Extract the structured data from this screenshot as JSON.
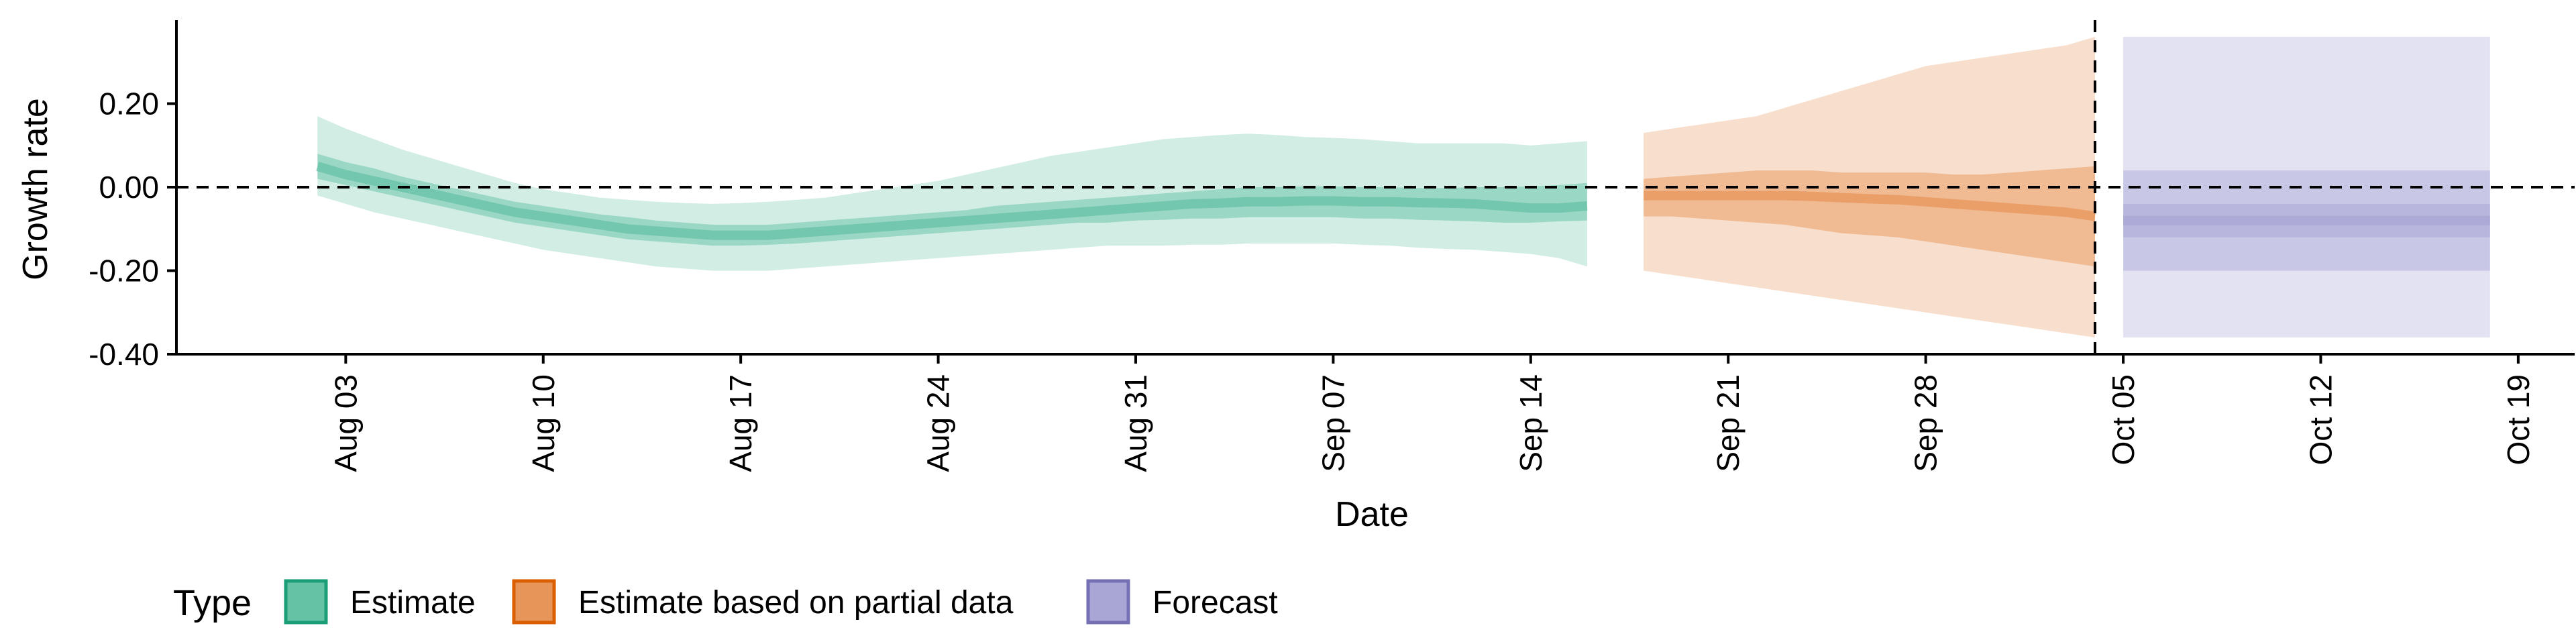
{
  "chart_data": {
    "type": "area",
    "xlabel": "Date",
    "ylabel": "Growth rate",
    "x_range": [
      "2020-07-28",
      "2020-10-21"
    ],
    "ylim": [
      -0.4,
      0.4
    ],
    "y_ticks": [
      -0.4,
      -0.2,
      0.0,
      0.2
    ],
    "y_tick_labels": [
      "-0.40",
      "-0.20",
      "0.00",
      "0.20"
    ],
    "x_ticks": [
      "2020-08-03",
      "2020-08-10",
      "2020-08-17",
      "2020-08-24",
      "2020-08-31",
      "2020-09-07",
      "2020-09-14",
      "2020-09-21",
      "2020-09-28",
      "2020-10-05",
      "2020-10-12",
      "2020-10-19"
    ],
    "x_tick_labels": [
      "Aug 03",
      "Aug 10",
      "Aug 17",
      "Aug 24",
      "Aug 31",
      "Sep 07",
      "Sep 14",
      "Sep 21",
      "Sep 28",
      "Oct 05",
      "Oct 12",
      "Oct 19"
    ],
    "reference_lines": {
      "horizontal_y": 0.0,
      "vertical_x": "2020-10-04"
    },
    "grid": false,
    "legend": {
      "title": "Type",
      "position": "bottom",
      "entries": [
        "Estimate",
        "Estimate based on partial data",
        "Forecast"
      ]
    },
    "colors": {
      "estimate_fill": "#66c2a5",
      "estimate_border": "#1b9e77",
      "partial_fill": "#e8955a",
      "partial_border": "#d95f02",
      "forecast_fill": "#a9a6d6",
      "forecast_border": "#7570b3"
    },
    "series": [
      {
        "name": "Estimate",
        "x": [
          "2020-08-02",
          "2020-08-03",
          "2020-08-04",
          "2020-08-05",
          "2020-08-06",
          "2020-08-07",
          "2020-08-08",
          "2020-08-09",
          "2020-08-10",
          "2020-08-11",
          "2020-08-12",
          "2020-08-13",
          "2020-08-14",
          "2020-08-15",
          "2020-08-16",
          "2020-08-17",
          "2020-08-18",
          "2020-08-19",
          "2020-08-20",
          "2020-08-21",
          "2020-08-22",
          "2020-08-23",
          "2020-08-24",
          "2020-08-25",
          "2020-08-26",
          "2020-08-27",
          "2020-08-28",
          "2020-08-29",
          "2020-08-30",
          "2020-08-31",
          "2020-09-01",
          "2020-09-02",
          "2020-09-03",
          "2020-09-04",
          "2020-09-05",
          "2020-09-06",
          "2020-09-07",
          "2020-09-08",
          "2020-09-09",
          "2020-09-10",
          "2020-09-11",
          "2020-09-12",
          "2020-09-13",
          "2020-09-14",
          "2020-09-15",
          "2020-09-16"
        ],
        "median": [
          0.05,
          0.03,
          0.015,
          0.0,
          -0.015,
          -0.03,
          -0.045,
          -0.06,
          -0.07,
          -0.08,
          -0.09,
          -0.1,
          -0.105,
          -0.11,
          -0.115,
          -0.115,
          -0.115,
          -0.11,
          -0.105,
          -0.1,
          -0.095,
          -0.09,
          -0.085,
          -0.08,
          -0.075,
          -0.07,
          -0.065,
          -0.06,
          -0.055,
          -0.05,
          -0.045,
          -0.04,
          -0.038,
          -0.035,
          -0.035,
          -0.033,
          -0.033,
          -0.035,
          -0.035,
          -0.037,
          -0.038,
          -0.04,
          -0.045,
          -0.05,
          -0.05,
          -0.045
        ],
        "lower_50": [
          0.02,
          0.005,
          -0.01,
          -0.025,
          -0.04,
          -0.055,
          -0.07,
          -0.085,
          -0.095,
          -0.105,
          -0.115,
          -0.125,
          -0.13,
          -0.135,
          -0.14,
          -0.14,
          -0.138,
          -0.135,
          -0.13,
          -0.125,
          -0.12,
          -0.115,
          -0.11,
          -0.105,
          -0.1,
          -0.095,
          -0.09,
          -0.085,
          -0.085,
          -0.08,
          -0.078,
          -0.075,
          -0.075,
          -0.072,
          -0.072,
          -0.072,
          -0.072,
          -0.075,
          -0.075,
          -0.078,
          -0.08,
          -0.082,
          -0.085,
          -0.085,
          -0.082,
          -0.08
        ],
        "upper_50": [
          0.08,
          0.06,
          0.045,
          0.025,
          0.01,
          -0.005,
          -0.02,
          -0.035,
          -0.045,
          -0.055,
          -0.065,
          -0.072,
          -0.08,
          -0.085,
          -0.09,
          -0.09,
          -0.09,
          -0.085,
          -0.08,
          -0.075,
          -0.07,
          -0.065,
          -0.06,
          -0.055,
          -0.045,
          -0.04,
          -0.035,
          -0.03,
          -0.025,
          -0.02,
          -0.015,
          -0.01,
          -0.005,
          0.0,
          0.0,
          0.002,
          0.002,
          0.0,
          0.0,
          -0.002,
          -0.002,
          0.0,
          0.0,
          0.002,
          0.005,
          0.01
        ],
        "lower_90": [
          -0.02,
          -0.04,
          -0.06,
          -0.075,
          -0.09,
          -0.105,
          -0.12,
          -0.135,
          -0.15,
          -0.16,
          -0.17,
          -0.18,
          -0.19,
          -0.195,
          -0.2,
          -0.2,
          -0.2,
          -0.195,
          -0.19,
          -0.185,
          -0.18,
          -0.175,
          -0.17,
          -0.165,
          -0.16,
          -0.155,
          -0.15,
          -0.145,
          -0.14,
          -0.14,
          -0.14,
          -0.138,
          -0.138,
          -0.135,
          -0.135,
          -0.135,
          -0.135,
          -0.138,
          -0.14,
          -0.145,
          -0.148,
          -0.15,
          -0.155,
          -0.16,
          -0.17,
          -0.19
        ],
        "upper_90": [
          0.17,
          0.14,
          0.115,
          0.09,
          0.07,
          0.05,
          0.03,
          0.01,
          -0.005,
          -0.015,
          -0.025,
          -0.03,
          -0.035,
          -0.038,
          -0.04,
          -0.038,
          -0.035,
          -0.03,
          -0.025,
          -0.015,
          -0.005,
          0.005,
          0.015,
          0.03,
          0.045,
          0.06,
          0.075,
          0.085,
          0.095,
          0.105,
          0.115,
          0.12,
          0.125,
          0.128,
          0.125,
          0.12,
          0.118,
          0.115,
          0.11,
          0.105,
          0.105,
          0.105,
          0.105,
          0.1,
          0.105,
          0.11
        ]
      },
      {
        "name": "Estimate based on partial data",
        "x": [
          "2020-09-18",
          "2020-09-19",
          "2020-09-20",
          "2020-09-21",
          "2020-09-22",
          "2020-09-23",
          "2020-09-24",
          "2020-09-25",
          "2020-09-26",
          "2020-09-27",
          "2020-09-28",
          "2020-09-29",
          "2020-09-30",
          "2020-10-01",
          "2020-10-02",
          "2020-10-03",
          "2020-10-04"
        ],
        "median": [
          -0.02,
          -0.02,
          -0.02,
          -0.02,
          -0.02,
          -0.02,
          -0.022,
          -0.025,
          -0.028,
          -0.03,
          -0.035,
          -0.04,
          -0.045,
          -0.05,
          -0.055,
          -0.06,
          -0.07
        ],
        "lower_50": [
          -0.07,
          -0.07,
          -0.075,
          -0.08,
          -0.085,
          -0.09,
          -0.1,
          -0.11,
          -0.115,
          -0.12,
          -0.13,
          -0.14,
          -0.15,
          -0.16,
          -0.17,
          -0.18,
          -0.19
        ],
        "upper_50": [
          0.02,
          0.025,
          0.03,
          0.035,
          0.04,
          0.04,
          0.04,
          0.035,
          0.035,
          0.035,
          0.035,
          0.03,
          0.03,
          0.035,
          0.04,
          0.045,
          0.05
        ],
        "lower_90": [
          -0.2,
          -0.21,
          -0.22,
          -0.23,
          -0.24,
          -0.25,
          -0.26,
          -0.27,
          -0.28,
          -0.29,
          -0.3,
          -0.31,
          -0.32,
          -0.33,
          -0.34,
          -0.35,
          -0.36
        ],
        "upper_90": [
          0.13,
          0.14,
          0.15,
          0.16,
          0.17,
          0.19,
          0.21,
          0.23,
          0.25,
          0.27,
          0.29,
          0.3,
          0.31,
          0.32,
          0.33,
          0.34,
          0.36
        ]
      },
      {
        "name": "Forecast",
        "x": [
          "2020-10-05",
          "2020-10-18"
        ],
        "median": [
          -0.08,
          -0.08
        ],
        "lower_50": [
          -0.12,
          -0.12
        ],
        "upper_50": [
          -0.04,
          -0.04
        ],
        "lower_25": [
          -0.2,
          -0.2
        ],
        "upper_25": [
          0.04,
          0.04
        ],
        "lower_90": [
          -0.36,
          -0.36
        ],
        "upper_90": [
          0.36,
          0.36
        ]
      }
    ]
  }
}
